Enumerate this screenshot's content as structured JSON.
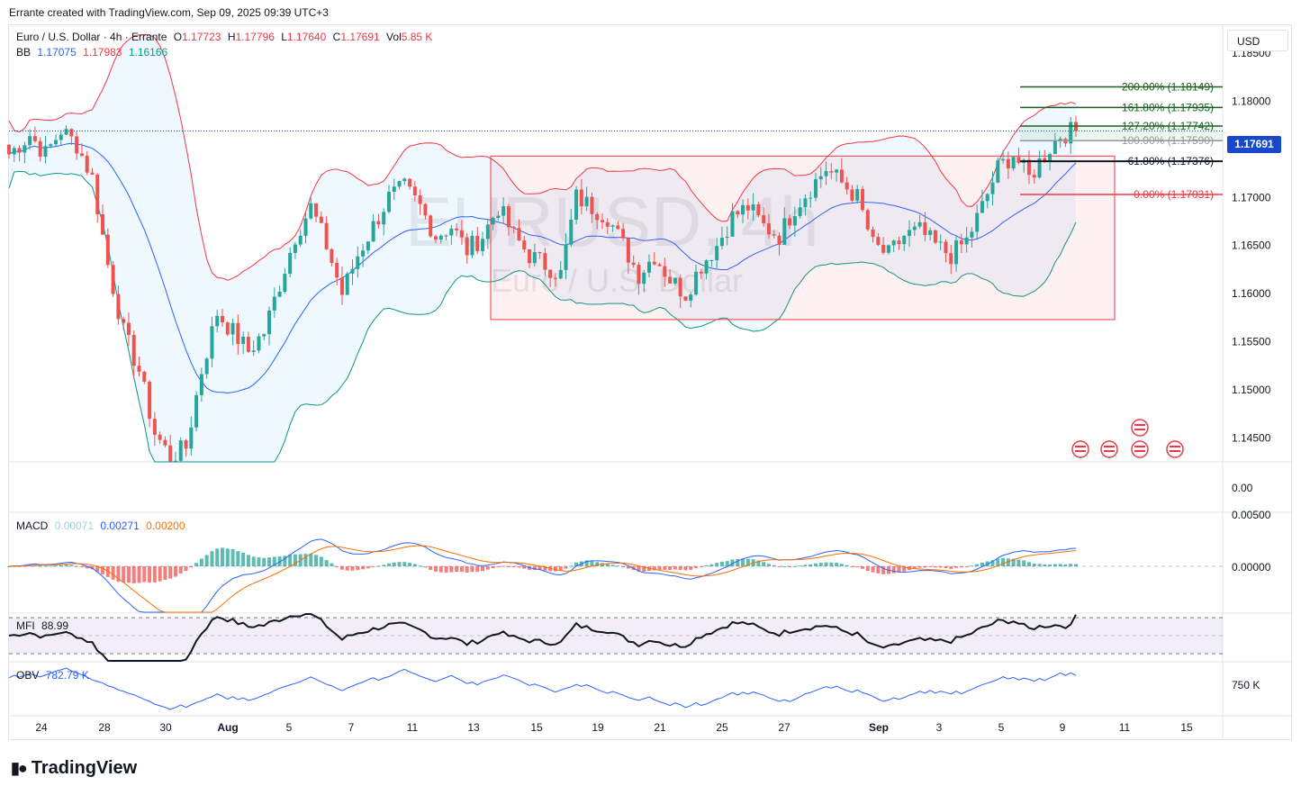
{
  "header": "Errante created with TradingView.com, Sep 09, 2025 09:39 UTC+3",
  "symbol_legend": {
    "name": "Euro / U.S. Dollar · 4h · Errante",
    "o_label": "O",
    "o": "1.17723",
    "h_label": "H",
    "h": "1.17796",
    "l_label": "L",
    "l": "1.17640",
    "c_label": "C",
    "c": "1.17691",
    "vol_label": "Vol",
    "vol": "5.85 K"
  },
  "bb_legend": {
    "label": "BB",
    "basis": "1.17075",
    "upper": "1.17983",
    "lower": "1.16166"
  },
  "macd_legend": {
    "label": "MACD",
    "hist": "0.00071",
    "macd": "0.00271",
    "signal": "0.00200"
  },
  "mfi_legend": {
    "label": "MFI",
    "value": "88.99"
  },
  "obv_legend": {
    "label": "OBV",
    "value": "782.79 K"
  },
  "currency": "USD",
  "last_price": "1.17691",
  "watermark": {
    "symbol": "EURUSD, 4h",
    "name": "Euro / U.S. Dollar"
  },
  "logo": "TradingView",
  "colors": {
    "up": "#26a69a",
    "down": "#ef5350",
    "bb_upper": "#f23645",
    "bb_basis": "#2962ff",
    "bb_lower": "#089981",
    "macd": "#2962ff",
    "signal": "#ff6d00",
    "obv": "#2962ff",
    "range_box": "#f23645"
  },
  "chart_data": [
    {
      "type": "candlestick",
      "title": "Euro / U.S. Dollar · 4h · Errante",
      "x_ticks": [
        "24",
        "28",
        "30",
        "Aug",
        "5",
        "7",
        "11",
        "13",
        "15",
        "19",
        "21",
        "25",
        "27",
        "Sep",
        "3",
        "5",
        "9",
        "11",
        "15"
      ],
      "y_ticks": [
        "1.18500",
        "1.18000",
        "1.17500",
        "1.17000",
        "1.16500",
        "1.16000",
        "1.15500",
        "1.15000",
        "1.14500"
      ],
      "ylim": [
        1.1425,
        1.188
      ],
      "price_path": [
        [
          0,
          1.1745
        ],
        [
          4,
          1.1765
        ],
        [
          7,
          1.1745
        ],
        [
          10,
          1.177
        ],
        [
          13,
          1.1755
        ],
        [
          16,
          1.172
        ],
        [
          19,
          1.163
        ],
        [
          22,
          1.156
        ],
        [
          25,
          1.152
        ],
        [
          28,
          1.1455
        ],
        [
          31,
          1.143
        ],
        [
          34,
          1.144
        ],
        [
          37,
          1.152
        ],
        [
          40,
          1.158
        ],
        [
          43,
          1.156
        ],
        [
          46,
          1.154
        ],
        [
          49,
          1.156
        ],
        [
          52,
          1.161
        ],
        [
          55,
          1.166
        ],
        [
          58,
          1.169
        ],
        [
          61,
          1.165
        ],
        [
          64,
          1.16
        ],
        [
          67,
          1.164
        ],
        [
          70,
          1.167
        ],
        [
          73,
          1.17
        ],
        [
          76,
          1.171
        ],
        [
          79,
          1.169
        ],
        [
          82,
          1.166
        ],
        [
          85,
          1.167
        ],
        [
          88,
          1.1645
        ],
        [
          91,
          1.166
        ],
        [
          94,
          1.169
        ],
        [
          97,
          1.166
        ],
        [
          100,
          1.164
        ],
        [
          103,
          1.163
        ],
        [
          106,
          1.162
        ],
        [
          109,
          1.17
        ],
        [
          112,
          1.169
        ],
        [
          115,
          1.168
        ],
        [
          118,
          1.165
        ],
        [
          121,
          1.162
        ],
        [
          124,
          1.164
        ],
        [
          127,
          1.1615
        ],
        [
          130,
          1.16
        ],
        [
          133,
          1.163
        ],
        [
          136,
          1.165
        ],
        [
          139,
          1.168
        ],
        [
          142,
          1.169
        ],
        [
          145,
          1.167
        ],
        [
          148,
          1.166
        ],
        [
          151,
          1.169
        ],
        [
          154,
          1.171
        ],
        [
          157,
          1.173
        ],
        [
          160,
          1.1715
        ],
        [
          163,
          1.17
        ],
        [
          166,
          1.165
        ],
        [
          169,
          1.164
        ],
        [
          172,
          1.166
        ],
        [
          175,
          1.1665
        ],
        [
          178,
          1.165
        ],
        [
          181,
          1.164
        ],
        [
          184,
          1.1655
        ],
        [
          187,
          1.169
        ],
        [
          190,
          1.173
        ],
        [
          193,
          1.1745
        ],
        [
          196,
          1.172
        ],
        [
          199,
          1.1745
        ],
        [
          202,
          1.1765
        ],
        [
          205,
          1.177
        ]
      ],
      "bollinger": {
        "upper": 1.17983,
        "basis": 1.17075,
        "lower": 1.16166
      },
      "last_price": 1.17691,
      "range_box": {
        "top": 1.1743,
        "bottom": 1.1573
      }
    },
    {
      "type": "fibonacci",
      "levels": [
        {
          "label": "200.00% (1.18149)",
          "price": 1.18149
        },
        {
          "label": "161.80% (1.17935)",
          "price": 1.17935
        },
        {
          "label": "127.20% (1.17742)",
          "price": 1.17742
        },
        {
          "label": "100.00% (1.17590)",
          "price": 1.1759
        },
        {
          "label": "61.80% (1.17376)",
          "price": 1.17376
        },
        {
          "label": "0.00% (1.17031)",
          "price": 1.17031
        }
      ]
    },
    {
      "type": "bar",
      "title": "Volume",
      "y_ticks": [
        "0.00"
      ]
    },
    {
      "type": "line",
      "title": "MACD",
      "y_ticks": [
        "0.00500",
        "0.00000"
      ]
    },
    {
      "type": "line",
      "title": "MFI",
      "value": 88.99
    },
    {
      "type": "line",
      "title": "OBV",
      "y_ticks": [
        "750 K"
      ]
    }
  ]
}
